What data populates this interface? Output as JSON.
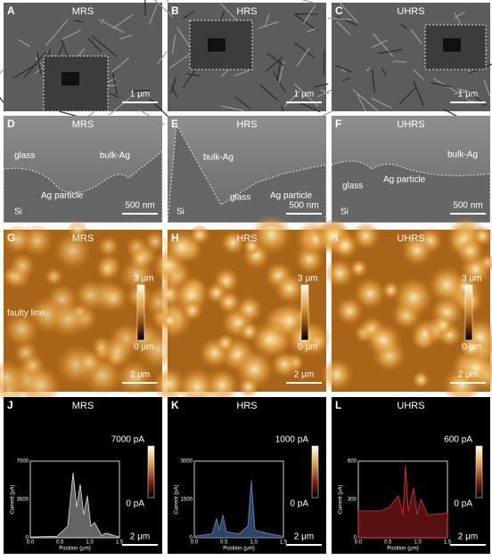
{
  "panels": [
    {
      "letter": "A",
      "title": "MRS",
      "scale_bar": "1 μm"
    },
    {
      "letter": "B",
      "title": "HRS",
      "scale_bar": "1 μm"
    },
    {
      "letter": "C",
      "title": "UHRS",
      "scale_bar": "1 μm"
    },
    {
      "letter": "D",
      "title": "MRS",
      "scale_bar": "500 nm",
      "labels": [
        "glass",
        "bulk-Ag",
        "Ag particle",
        "Si"
      ]
    },
    {
      "letter": "E",
      "title": "HRS",
      "scale_bar": "500 nm",
      "labels": [
        "bulk-Ag",
        "glass",
        "Ag particle",
        "Si"
      ]
    },
    {
      "letter": "F",
      "title": "UHRS",
      "scale_bar": "500 nm",
      "labels": [
        "glass",
        "Ag particle",
        "bulk-Ag",
        "Si"
      ]
    },
    {
      "letter": "G",
      "title": "MRS",
      "scale_bar": "2 μm",
      "labels": [
        "faulty line"
      ],
      "colorbar": {
        "max": "3 μm",
        "min": "0 μm"
      }
    },
    {
      "letter": "H",
      "title": "HRS",
      "scale_bar": "2 μm",
      "colorbar": {
        "max": "3 μm",
        "min": "0 μm"
      }
    },
    {
      "letter": "I",
      "title": "UHRS",
      "scale_bar": "2 μm",
      "colorbar": {
        "max": "3 μm",
        "min": "0 μm"
      }
    },
    {
      "letter": "J",
      "title": "MRS",
      "scale_bar": "2 μm",
      "colorbar": {
        "max": "7000 pA",
        "min": "0 pA"
      },
      "inset": {
        "y_label": "Current (pA)",
        "x_label": "Position (μm)",
        "yticks": [
          "0",
          "3500",
          "7000"
        ],
        "xticks": [
          "0.0",
          "0.5",
          "1.0",
          "1.5"
        ]
      }
    },
    {
      "letter": "K",
      "title": "HRS",
      "scale_bar": "2 μm",
      "colorbar": {
        "max": "1000 pA",
        "min": "0 pA"
      },
      "inset": {
        "y_label": "Current (pA)",
        "x_label": "Position (μm)",
        "yticks": [
          "0",
          "1500",
          "3000"
        ],
        "xticks": [
          "0.0",
          "0.5",
          "1.0",
          "1.5"
        ]
      }
    },
    {
      "letter": "L",
      "title": "UHRS",
      "scale_bar": "2 μm",
      "colorbar": {
        "max": "600 pA",
        "min": "0 pA"
      },
      "inset": {
        "y_label": "Current (pA)",
        "x_label": "Position (μm)",
        "yticks": [
          "0",
          "300",
          "600"
        ],
        "xticks": [
          "0.0",
          "0.5",
          "1.0",
          "1.5"
        ]
      }
    }
  ]
}
